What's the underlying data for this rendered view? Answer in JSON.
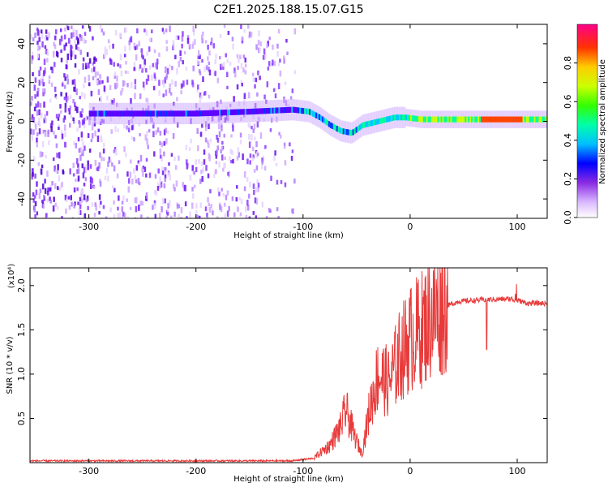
{
  "title": "C2E1.2025.188.15.07.G15",
  "colors": {
    "snr_line": "#e83a3a",
    "colorbar_stops": [
      "#ffffff",
      "#b06aff",
      "#5a00ff",
      "#0000ff",
      "#00bfff",
      "#00ff7f",
      "#7fff00",
      "#ffff00",
      "#ff8c00",
      "#ff0000",
      "#ff007f"
    ]
  },
  "chart_data": [
    {
      "type": "heatmap",
      "xlabel": "Height of straight line (km)",
      "ylabel": "Frequency (Hz)",
      "xlim": [
        -355,
        128
      ],
      "ylim": [
        -50,
        50
      ],
      "x_ticks": [
        -300,
        -200,
        -100,
        0,
        100
      ],
      "y_ticks": [
        -40,
        -20,
        0,
        20,
        40
      ],
      "colorbar": {
        "label": "Normalized spectral amplitude",
        "ticks": [
          0.0,
          0.2,
          0.4,
          0.6,
          0.8
        ],
        "range": [
          0,
          1
        ]
      },
      "signal_center_hz": [
        [
          -270,
          4
        ],
        [
          -200,
          4
        ],
        [
          -150,
          5
        ],
        [
          -110,
          6
        ],
        [
          -95,
          5
        ],
        [
          -85,
          2
        ],
        [
          -75,
          -2
        ],
        [
          -65,
          -5
        ],
        [
          -55,
          -6
        ],
        [
          -45,
          -2
        ],
        [
          -30,
          0
        ],
        [
          -15,
          2
        ],
        [
          -5,
          2
        ],
        [
          10,
          1
        ],
        [
          30,
          1
        ],
        [
          60,
          1
        ],
        [
          90,
          1
        ],
        [
          128,
          1
        ]
      ]
    },
    {
      "type": "line",
      "xlabel": "Height of straight line (km)",
      "ylabel": "SNR (10 * v/v)",
      "y_multiplier": "(x10⁴)",
      "xlim": [
        -355,
        128
      ],
      "ylim": [
        0,
        2.2
      ],
      "x_ticks": [
        -300,
        -200,
        -100,
        0,
        100
      ],
      "y_ticks": [
        0.5,
        1.0,
        1.5,
        2.0
      ],
      "series": [
        {
          "values_envelope": [
            [
              -355,
              0.02
            ],
            [
              -200,
              0.02
            ],
            [
              -110,
              0.02
            ],
            [
              -90,
              0.05
            ],
            [
              -75,
              0.2
            ],
            [
              -65,
              0.4
            ],
            [
              -60,
              0.6
            ],
            [
              -52,
              0.3
            ],
            [
              -45,
              0.1
            ],
            [
              -38,
              0.6
            ],
            [
              -30,
              1.0
            ],
            [
              -20,
              0.9
            ],
            [
              -10,
              1.2
            ],
            [
              0,
              1.4
            ],
            [
              10,
              1.5
            ],
            [
              20,
              1.65
            ],
            [
              30,
              1.75
            ],
            [
              45,
              1.82
            ],
            [
              70,
              1.84
            ],
            [
              95,
              1.85
            ],
            [
              110,
              1.8
            ],
            [
              128,
              1.8
            ]
          ]
        }
      ]
    }
  ]
}
